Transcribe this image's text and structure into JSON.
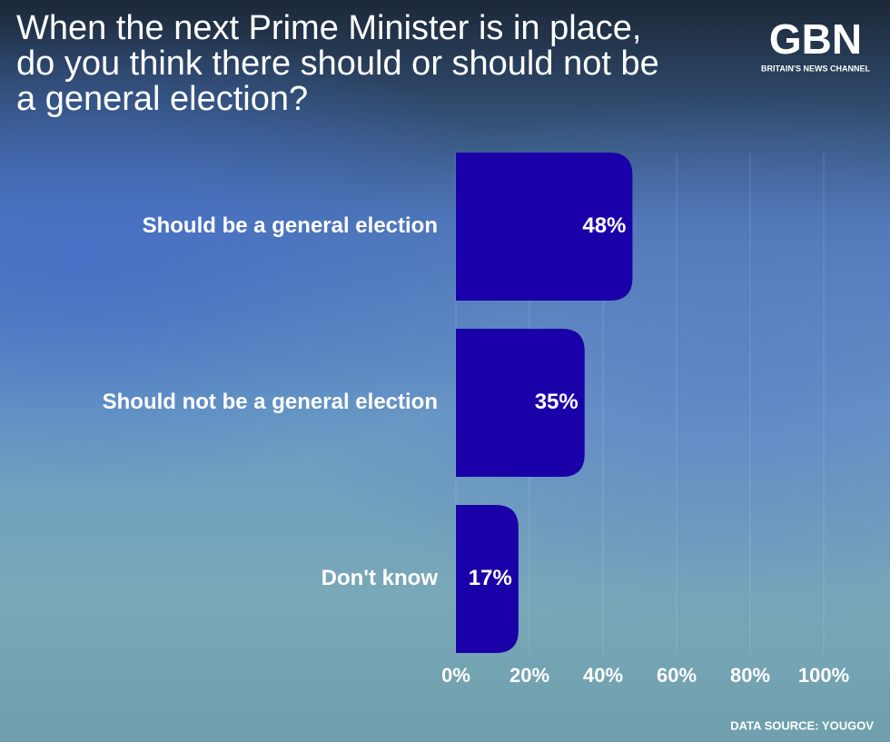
{
  "chart_data": {
    "type": "bar",
    "orientation": "horizontal",
    "title": "When the next Prime Minister is in place, do you think there should or should not be a general election?",
    "logo": "GBN",
    "logo_tagline": "BRITAIN'S NEWS CHANNEL",
    "source": "DATA SOURCE: YOUGOV",
    "categories": [
      "Should be a general election",
      "Should not be a general election",
      "Don't know"
    ],
    "values": [
      48,
      35,
      17
    ],
    "value_labels": [
      "48%",
      "35%",
      "17%"
    ],
    "color": "#1a00a8",
    "xlim": [
      0,
      100
    ],
    "xticks": [
      {
        "value": 0,
        "label": "0%"
      },
      {
        "value": 20,
        "label": "20%"
      },
      {
        "value": 40,
        "label": "40%"
      },
      {
        "value": 60,
        "label": "60%"
      },
      {
        "value": 80,
        "label": "80%"
      },
      {
        "value": 100,
        "label": "100%"
      }
    ],
    "grid": true
  }
}
